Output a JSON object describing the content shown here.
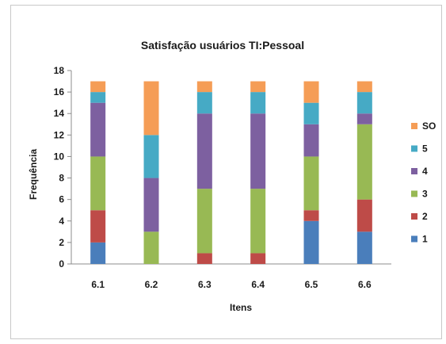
{
  "chart_data": {
    "type": "bar",
    "stacked": true,
    "title": "Satisfação usuários TI:Pessoal",
    "xlabel": "Itens",
    "ylabel": "Frequência",
    "ylim": [
      0,
      18
    ],
    "yticks": [
      0,
      2,
      4,
      6,
      8,
      10,
      12,
      14,
      16,
      18
    ],
    "grid": false,
    "legend_position": "right",
    "categories": [
      "6.1",
      "6.2",
      "6.3",
      "6.4",
      "6.5",
      "6.6"
    ],
    "series": [
      {
        "name": "1",
        "color": "#4a7ebb",
        "values": [
          2,
          0,
          0,
          0,
          4,
          3
        ]
      },
      {
        "name": "2",
        "color": "#be4b48",
        "values": [
          3,
          0,
          1,
          1,
          1,
          3
        ]
      },
      {
        "name": "3",
        "color": "#98b954",
        "values": [
          5,
          3,
          6,
          6,
          5,
          7
        ]
      },
      {
        "name": "4",
        "color": "#7d60a0",
        "values": [
          5,
          5,
          7,
          7,
          3,
          1
        ]
      },
      {
        "name": "5",
        "color": "#46aac5",
        "values": [
          1,
          4,
          2,
          2,
          2,
          2
        ]
      },
      {
        "name": "SO",
        "color": "#f59d56",
        "values": [
          1,
          5,
          1,
          1,
          2,
          1
        ]
      }
    ]
  }
}
